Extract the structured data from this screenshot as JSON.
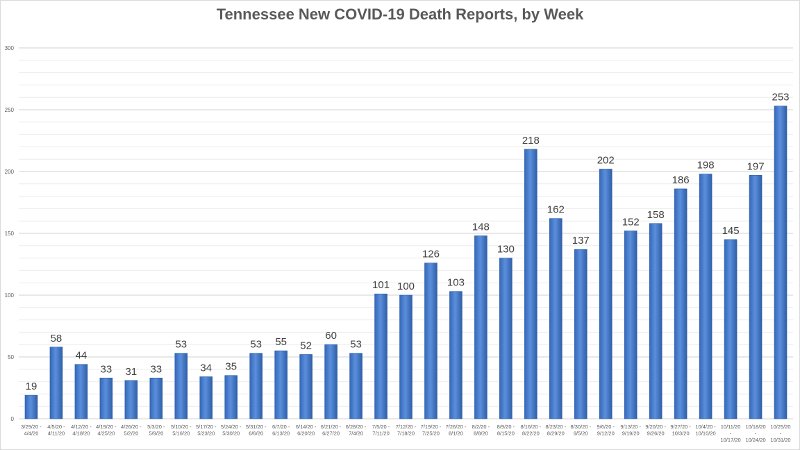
{
  "chart_data": {
    "type": "bar",
    "title": "Tennessee New COVID-19 Death Reports, by Week",
    "xlabel": "",
    "ylabel": "",
    "ylim": [
      0,
      300
    ],
    "yticks": [
      0,
      50,
      100,
      150,
      200,
      250,
      300
    ],
    "grid": true,
    "legend": "none",
    "bar_color": "#4a7fd0",
    "bar_edge_color": "#2f5fa8",
    "categories": [
      [
        "3/29/20 -",
        "4/4/20"
      ],
      [
        "4/5/20 -",
        "4/11/20"
      ],
      [
        "4/12/20 -",
        "4/18/20"
      ],
      [
        "4/19/20 -",
        "4/25/20"
      ],
      [
        "4/26/20 -",
        "5/2/20"
      ],
      [
        "5/3/20 -",
        "5/9/20"
      ],
      [
        "5/10/20 -",
        "5/16/20"
      ],
      [
        "5/17/20 -",
        "5/23/20"
      ],
      [
        "5/24/20 -",
        "5/30/20"
      ],
      [
        "5/31/20 -",
        "6/6/20"
      ],
      [
        "6/7/20 -",
        "6/13/20"
      ],
      [
        "6/14/20 -",
        "6/20/20"
      ],
      [
        "6/21/20 -",
        "6/27/20"
      ],
      [
        "6/28/20 -",
        "7/4/20"
      ],
      [
        "7/5/20 -",
        "7/11/20"
      ],
      [
        "7/12/20 -",
        "7/18/20"
      ],
      [
        "7/19/20 -",
        "7/25/20"
      ],
      [
        "7/26/20 -",
        "8/1/20"
      ],
      [
        "8/2/20 -",
        "8/8/20"
      ],
      [
        "8/9/20 -",
        "8/15/20"
      ],
      [
        "8/16/20 -",
        "8/22/20"
      ],
      [
        "8/23/20 -",
        "8/29/20"
      ],
      [
        "8/30/20 -",
        "9/5/20"
      ],
      [
        "9/6/20 -",
        "9/12/20"
      ],
      [
        "9/13/20 -",
        "9/19/20"
      ],
      [
        "9/20/20 -",
        "9/26/20"
      ],
      [
        "9/27/20 -",
        "10/3/20"
      ],
      [
        "10/4/20 -",
        "10/10/20"
      ],
      [
        "10/11/20",
        "-",
        "10/17/20"
      ],
      [
        "10/18/20",
        "-",
        "10/24/20"
      ],
      [
        "10/25/20",
        "-",
        "10/31/20"
      ]
    ],
    "values": [
      19,
      58,
      44,
      33,
      31,
      33,
      53,
      34,
      35,
      53,
      55,
      52,
      60,
      53,
      101,
      100,
      126,
      103,
      148,
      130,
      218,
      162,
      137,
      202,
      152,
      158,
      186,
      198,
      145,
      197,
      253
    ]
  }
}
